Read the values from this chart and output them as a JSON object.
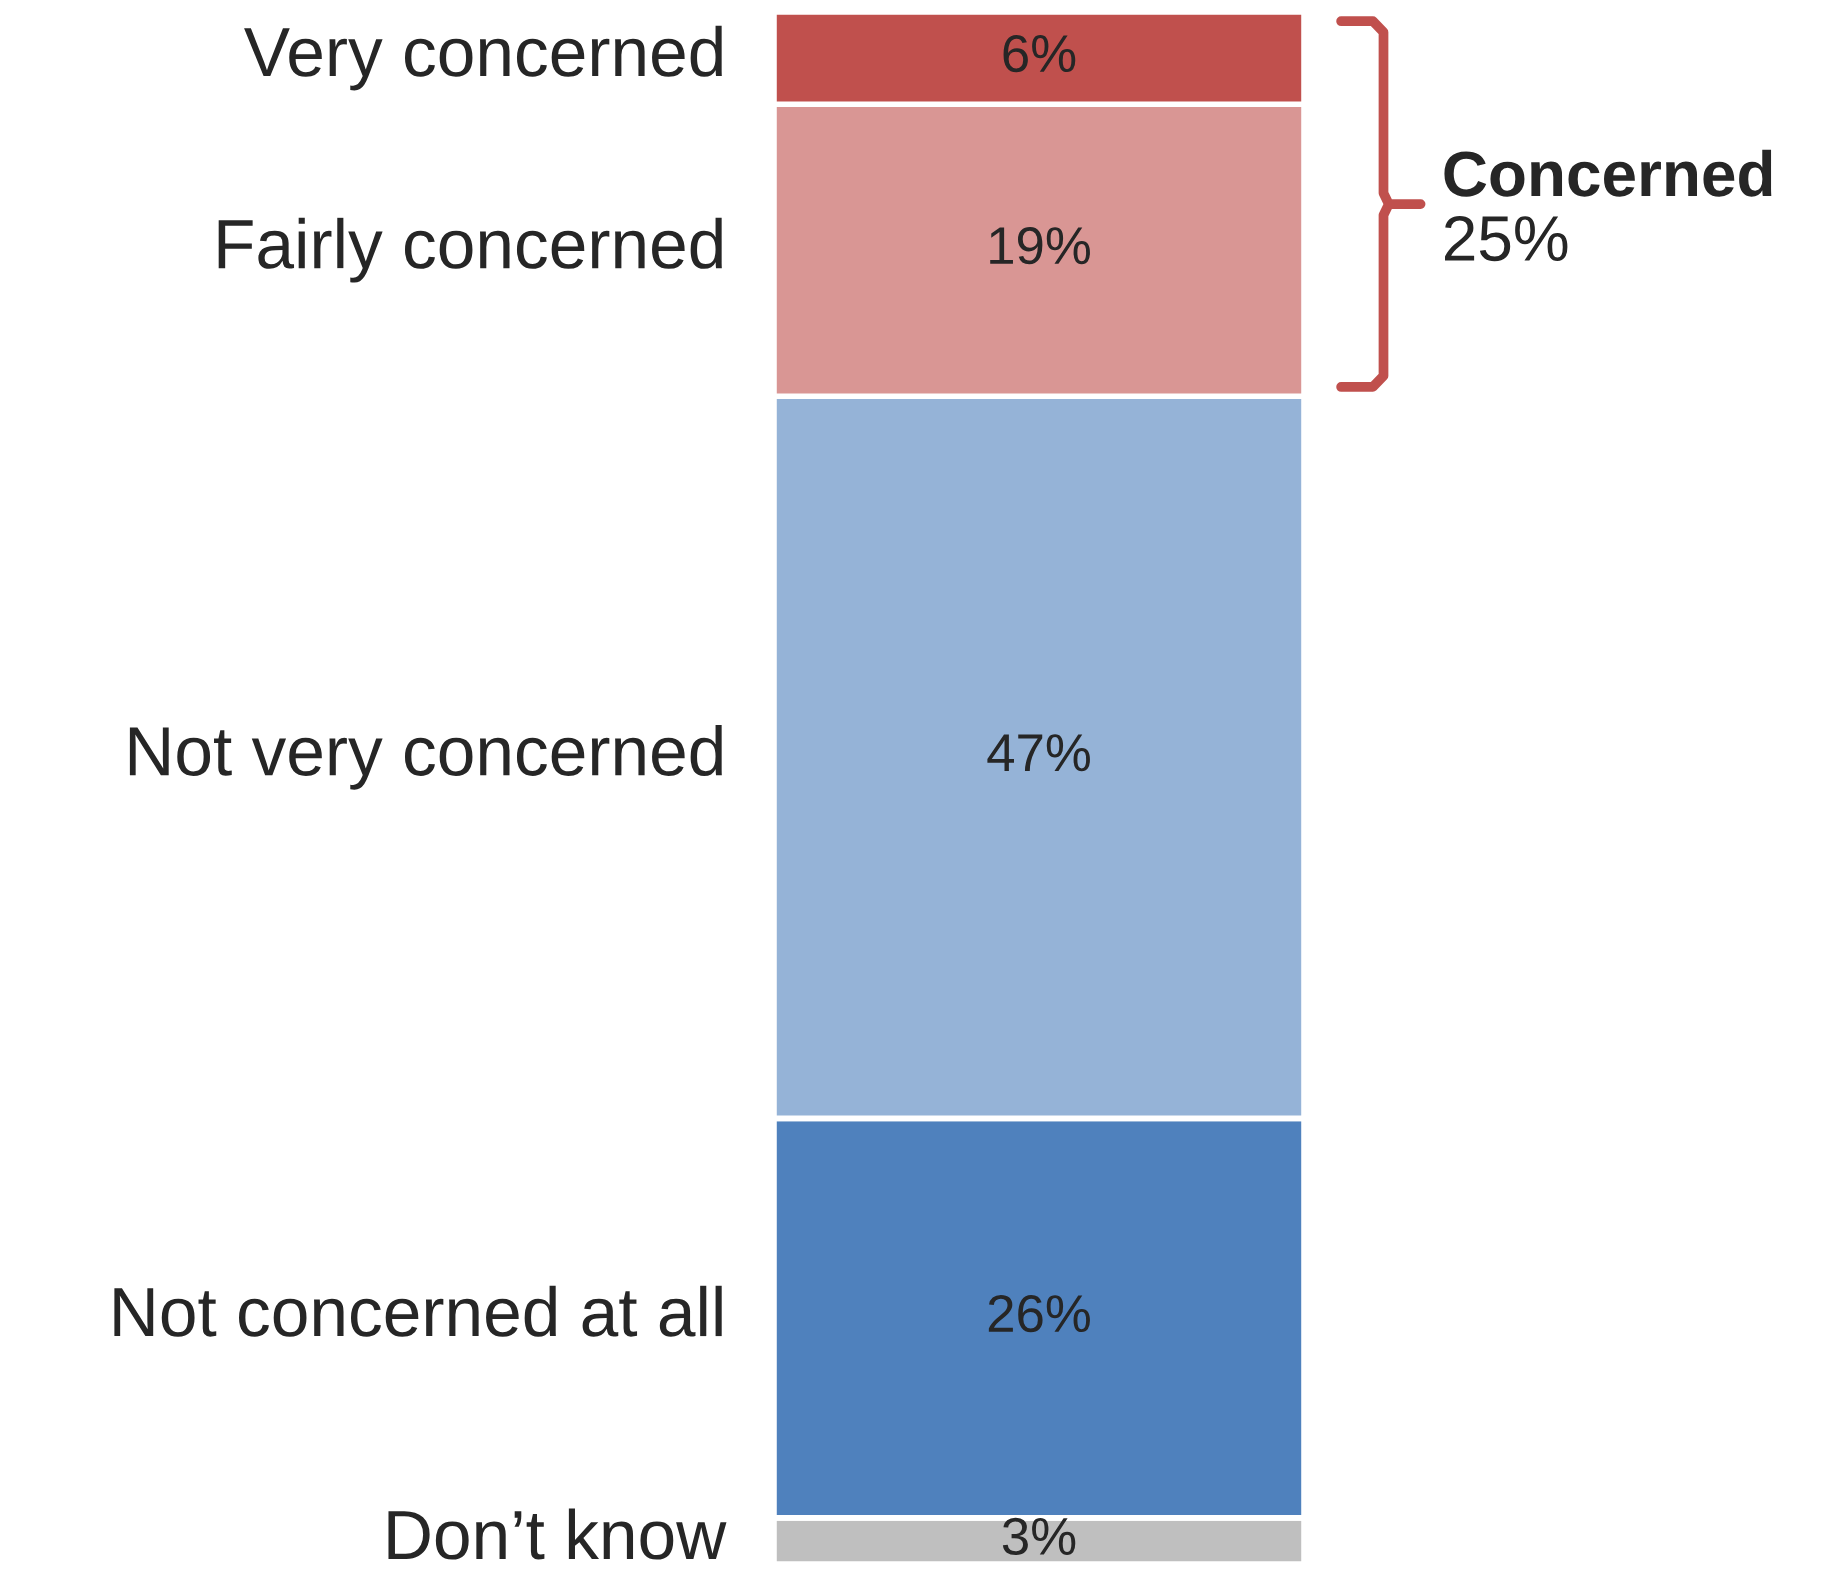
{
  "chart_data": {
    "type": "bar",
    "stacked": true,
    "categories": [
      null
    ],
    "series": [
      {
        "name": "Don’t know",
        "color": "#bfbfbf",
        "values": [
          3
        ],
        "value_labels": [
          "3%"
        ]
      },
      {
        "name": "Not concerned at all",
        "color": "#4f81bd",
        "values": [
          26
        ],
        "value_labels": [
          "26%"
        ]
      },
      {
        "name": "Not very concerned",
        "color": "#95b3d7",
        "values": [
          47
        ],
        "value_labels": [
          "47%"
        ]
      },
      {
        "name": "Fairly concerned",
        "color": "#d99694",
        "values": [
          19
        ],
        "value_labels": [
          "19%"
        ]
      },
      {
        "name": "Very concerned",
        "color": "#c0504d",
        "values": [
          6
        ],
        "value_labels": [
          "6%"
        ]
      }
    ],
    "legend": false,
    "tick_labels": false,
    "annotations": [
      "Concerned",
      "25%"
    ]
  }
}
